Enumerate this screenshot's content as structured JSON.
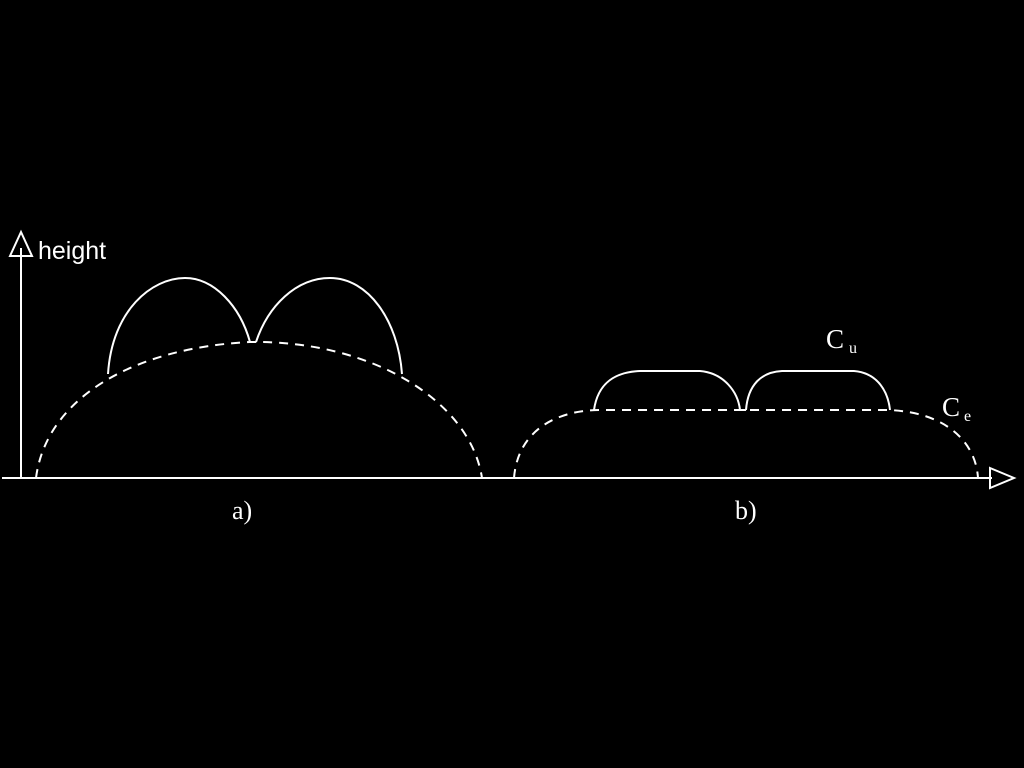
{
  "axis": {
    "y_label": "height"
  },
  "panels": [
    {
      "id": "a",
      "label": "a)"
    },
    {
      "id": "b",
      "label": "b)"
    }
  ],
  "curve_labels": {
    "upper": {
      "main": "C",
      "sub": "u"
    },
    "lower": {
      "main": "C",
      "sub": "e"
    }
  },
  "colors": {
    "background": "#000000",
    "stroke": "#ffffff"
  }
}
